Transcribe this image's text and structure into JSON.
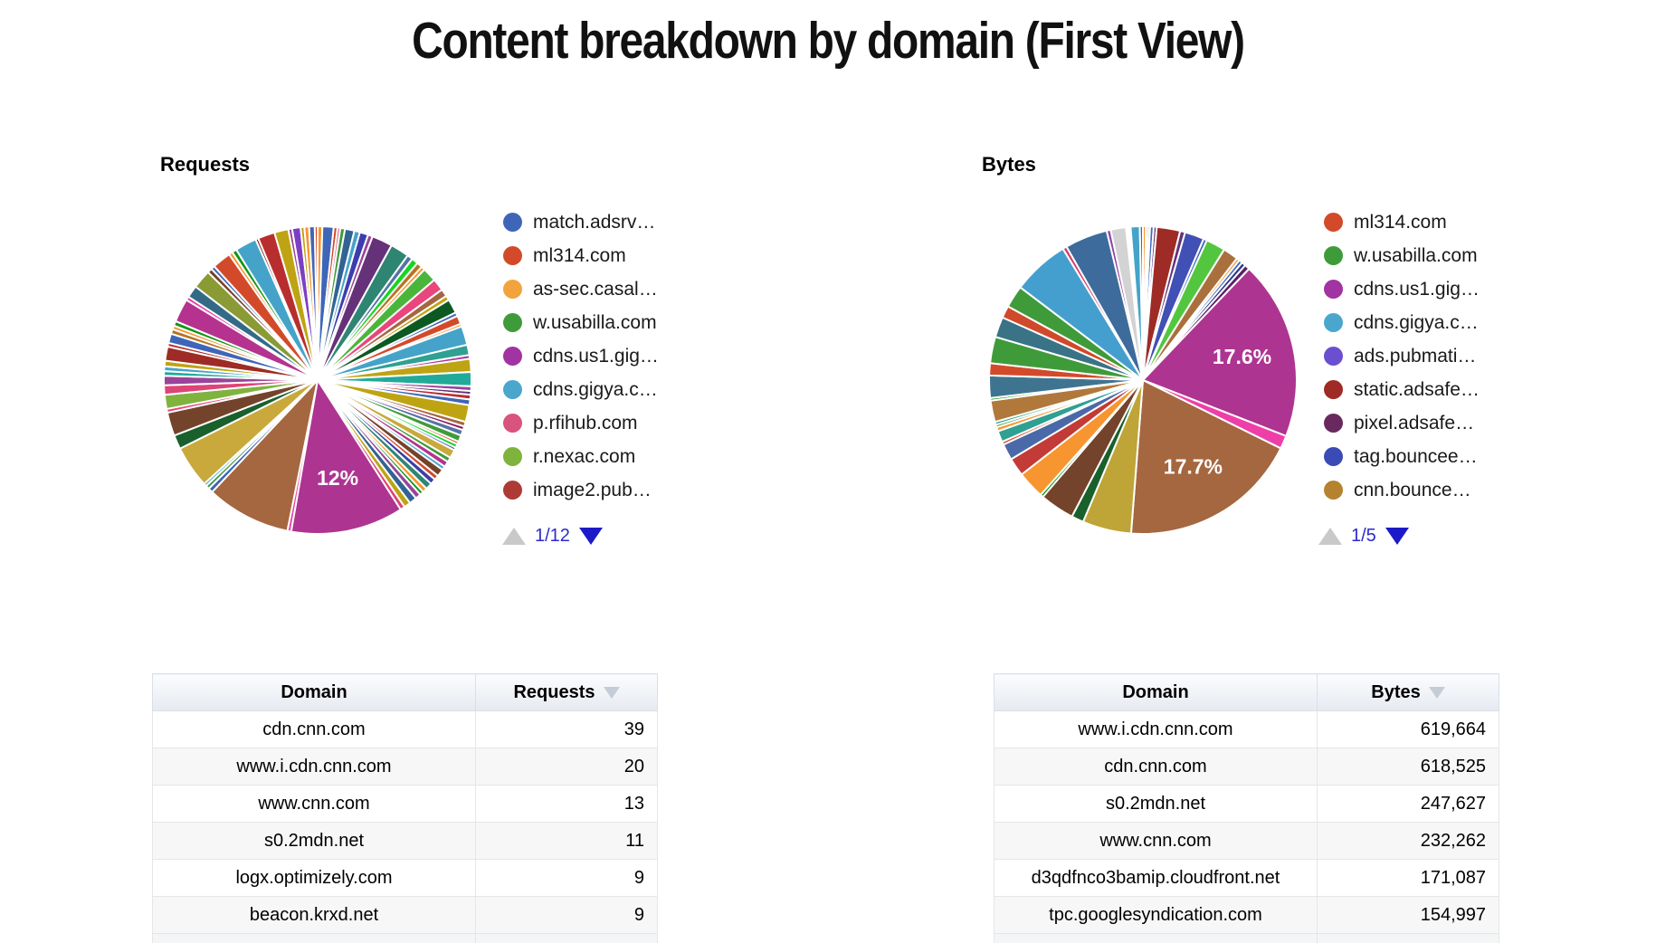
{
  "title": "Content breakdown by domain (First View)",
  "colors": {
    "link_blue": "#2b2bcd",
    "pager_active": "#1c1ac8",
    "pager_disabled": "#c9c9c9",
    "requests_big_slice": "#AD3591",
    "bytes_big_slice_1": "#AD3591",
    "bytes_big_slice_2": "#A5673F"
  },
  "chart_data": [
    {
      "type": "pie",
      "title": "Requests",
      "legend_position": "right",
      "pager": {
        "page": "1/12",
        "up_enabled": false,
        "down_enabled": true
      },
      "legend": [
        {
          "label": "match.adsrv…",
          "color": "#3E66B8"
        },
        {
          "label": "ml314.com",
          "color": "#D34A2B"
        },
        {
          "label": "as-sec.casal…",
          "color": "#F2A33C"
        },
        {
          "label": "w.usabilla.com",
          "color": "#3F9B3A"
        },
        {
          "label": "cdns.us1.gig…",
          "color": "#A233A2"
        },
        {
          "label": "cdns.gigya.c…",
          "color": "#4BA6CE"
        },
        {
          "label": "p.rfihub.com",
          "color": "#D8537E"
        },
        {
          "label": "r.nexac.com",
          "color": "#7FB33E"
        },
        {
          "label": "image2.pub…",
          "color": "#AE3A35"
        }
      ],
      "labeled_values": [
        {
          "label": "12%",
          "color": "#AD3591"
        }
      ],
      "slices": [
        [
          0.5,
          "#F79630"
        ],
        [
          1.2,
          "#3E66B8"
        ],
        [
          0.4,
          "#D34A2B"
        ],
        [
          0.3,
          "#E8467D"
        ],
        [
          0.5,
          "#3F9B3A"
        ],
        [
          1.0,
          "#316395"
        ],
        [
          0.6,
          "#45A3C9"
        ],
        [
          0.9,
          "#3B3EAC"
        ],
        [
          0.5,
          "#994499"
        ],
        [
          2.2,
          "#65327A"
        ],
        [
          2.0,
          "#2E8572"
        ],
        [
          0.6,
          "#5574A6"
        ],
        [
          0.7,
          "#16D620"
        ],
        [
          0.6,
          "#B77322"
        ],
        [
          0.4,
          "#F79630"
        ],
        [
          1.5,
          "#49B63B"
        ],
        [
          1.3,
          "#E8467D"
        ],
        [
          0.8,
          "#A5673F"
        ],
        [
          0.5,
          "#BEA413"
        ],
        [
          1.5,
          "#0C5922"
        ],
        [
          0.4,
          "#3E66B8"
        ],
        [
          0.9,
          "#D34A2B"
        ],
        [
          0.3,
          "#F79630"
        ],
        [
          2.0,
          "#45A3C9"
        ],
        [
          1.1,
          "#2FA092"
        ],
        [
          0.4,
          "#AD3591"
        ],
        [
          1.4,
          "#BEA413"
        ],
        [
          1.5,
          "#22AA99"
        ],
        [
          0.5,
          "#994499"
        ],
        [
          0.4,
          "#65327A"
        ],
        [
          0.5,
          "#B82E2E"
        ],
        [
          0.6,
          "#3E66B8"
        ],
        [
          1.8,
          "#BEA413"
        ],
        [
          0.5,
          "#A5673F"
        ],
        [
          0.4,
          "#8B1A62"
        ],
        [
          0.6,
          "#5574A6"
        ],
        [
          0.7,
          "#3F9B3A"
        ],
        [
          0.3,
          "#D34A2B"
        ],
        [
          0.4,
          "#16D620"
        ],
        [
          0.3,
          "#3E66B8"
        ],
        [
          0.9,
          "#C9A93B"
        ],
        [
          0.5,
          "#3F9B3A"
        ],
        [
          0.6,
          "#B5338F"
        ],
        [
          0.4,
          "#45A3C9"
        ],
        [
          0.8,
          "#74432B"
        ],
        [
          0.5,
          "#D34A2B"
        ],
        [
          0.6,
          "#3B3EAC"
        ],
        [
          0.7,
          "#2E8572"
        ],
        [
          0.5,
          "#F79630"
        ],
        [
          0.4,
          "#109618"
        ],
        [
          0.6,
          "#994499"
        ],
        [
          0.8,
          "#316395"
        ],
        [
          0.7,
          "#BEA413"
        ],
        [
          0.5,
          "#DD4477"
        ],
        [
          12.0,
          "#AD3591",
          "12%"
        ],
        [
          0.4,
          "#EE3FA8"
        ],
        [
          9.0,
          "#A5673F"
        ],
        [
          0.5,
          "#3E66B8"
        ],
        [
          0.4,
          "#3F9B3A"
        ],
        [
          0.3,
          "#45A3C9"
        ],
        [
          4.5,
          "#C9A93B"
        ],
        [
          1.5,
          "#19602C"
        ],
        [
          2.5,
          "#74432B"
        ],
        [
          0.4,
          "#E8467D"
        ],
        [
          1.5,
          "#7FB33E"
        ],
        [
          1.0,
          "#DD4477"
        ],
        [
          1.0,
          "#994499"
        ],
        [
          0.5,
          "#22AA99"
        ],
        [
          0.5,
          "#45A3C9"
        ],
        [
          0.6,
          "#BEA413"
        ],
        [
          1.5,
          "#9E2B25"
        ],
        [
          0.4,
          "#B82E2E"
        ],
        [
          1.0,
          "#3E66B8"
        ],
        [
          0.5,
          "#B77322"
        ],
        [
          0.4,
          "#F79630"
        ],
        [
          0.5,
          "#109618"
        ],
        [
          2.5,
          "#B5338F"
        ],
        [
          0.4,
          "#EE3FA8"
        ],
        [
          1.3,
          "#336B87"
        ],
        [
          2.0,
          "#8A9A35"
        ],
        [
          0.5,
          "#74432B"
        ],
        [
          0.4,
          "#3E66B8"
        ],
        [
          2.0,
          "#D34A2B"
        ],
        [
          0.4,
          "#F79630"
        ],
        [
          0.5,
          "#109618"
        ],
        [
          2.3,
          "#45A3C9"
        ],
        [
          0.3,
          "#8B0707"
        ],
        [
          1.8,
          "#B82E2E"
        ],
        [
          1.5,
          "#BEA413"
        ],
        [
          0.4,
          "#994499"
        ],
        [
          0.9,
          "#7B3FC4"
        ],
        [
          0.4,
          "#BEA413"
        ],
        [
          0.5,
          "#F79630"
        ],
        [
          0.6,
          "#3E66B8"
        ],
        [
          0.3,
          "#DC3912"
        ]
      ]
    },
    {
      "type": "pie",
      "title": "Bytes",
      "legend_position": "right",
      "pager": {
        "page": "1/5",
        "up_enabled": false,
        "down_enabled": true
      },
      "legend": [
        {
          "label": "ml314.com",
          "color": "#D34A2B"
        },
        {
          "label": "w.usabilla.com",
          "color": "#3F9B3A"
        },
        {
          "label": "cdns.us1.gig…",
          "color": "#A233A2"
        },
        {
          "label": "cdns.gigya.c…",
          "color": "#4BA6CE"
        },
        {
          "label": "ads.pubmati…",
          "color": "#6A4FD1"
        },
        {
          "label": "static.adsafe…",
          "color": "#9E2B25"
        },
        {
          "label": "pixel.adsafe…",
          "color": "#69295E"
        },
        {
          "label": "tag.bouncee…",
          "color": "#3A4BB5"
        },
        {
          "label": "cnn.bounce…",
          "color": "#B5822F"
        }
      ],
      "labeled_values": [
        {
          "label": "17.6%",
          "color": "#AD3591"
        },
        {
          "label": "17.7%",
          "color": "#A5673F"
        }
      ],
      "slices": [
        [
          0.3,
          "#F79630"
        ],
        [
          0.2,
          "#DC3912"
        ],
        [
          0.2,
          "#109618"
        ],
        [
          0.35,
          "#3E66B8"
        ],
        [
          0.3,
          "#65327A"
        ],
        [
          2.3,
          "#9E2B25"
        ],
        [
          0.5,
          "#65327A"
        ],
        [
          1.9,
          "#4150B5"
        ],
        [
          0.35,
          "#3E66B8"
        ],
        [
          1.9,
          "#52C63F"
        ],
        [
          1.5,
          "#A9703D"
        ],
        [
          0.3,
          "#F79630"
        ],
        [
          0.35,
          "#3E66B8"
        ],
        [
          0.4,
          "#2B3A8C"
        ],
        [
          0.5,
          "#5C1F66"
        ],
        [
          17.6,
          "#AD3591",
          "17.6%"
        ],
        [
          1.3,
          "#EE3FA8"
        ],
        [
          17.7,
          "#A5673F",
          "17.7%"
        ],
        [
          4.8,
          "#BFA437"
        ],
        [
          1.2,
          "#19602C"
        ],
        [
          3.4,
          "#74432B"
        ],
        [
          0.3,
          "#109618"
        ],
        [
          2.7,
          "#F79630"
        ],
        [
          1.8,
          "#C23B36"
        ],
        [
          1.6,
          "#4A69A8"
        ],
        [
          0.3,
          "#DC3912"
        ],
        [
          1.1,
          "#2FA092"
        ],
        [
          0.4,
          "#F79630"
        ],
        [
          0.25,
          "#109618"
        ],
        [
          0.3,
          "#2FA092"
        ],
        [
          2.1,
          "#B0793B"
        ],
        [
          0.25,
          "#109618"
        ],
        [
          2.2,
          "#3F7490"
        ],
        [
          1.2,
          "#D34A2B"
        ],
        [
          2.6,
          "#3F9B3A"
        ],
        [
          2.0,
          "#3A7286"
        ],
        [
          1.2,
          "#D0492B"
        ],
        [
          2.2,
          "#3F9B3A"
        ],
        [
          5.6,
          "#459FCE"
        ],
        [
          0.4,
          "#D23C68"
        ],
        [
          4.2,
          "#3D6B9B"
        ],
        [
          0.4,
          "#9346A8"
        ],
        [
          1.5,
          "#D3D3D3"
        ],
        [
          0.15,
          "#C0392B"
        ],
        [
          0.15,
          "#8E44AD"
        ],
        [
          0.15,
          "#27AE60"
        ],
        [
          0.9,
          "#45A3C9"
        ],
        [
          0.3,
          "#3E66B8"
        ]
      ]
    }
  ],
  "tables": [
    {
      "headers": [
        "Domain",
        "Requests"
      ],
      "sorted": {
        "column": "Requests",
        "direction": "desc"
      },
      "rows": [
        [
          "cdn.cnn.com",
          "39"
        ],
        [
          "www.i.cdn.cnn.com",
          "20"
        ],
        [
          "www.cnn.com",
          "13"
        ],
        [
          "s0.2mdn.net",
          "11"
        ],
        [
          "logx.optimizely.com",
          "9"
        ],
        [
          "beacon.krxd.net",
          "9"
        ]
      ]
    },
    {
      "headers": [
        "Domain",
        "Bytes"
      ],
      "sorted": {
        "column": "Bytes",
        "direction": "desc"
      },
      "rows": [
        [
          "www.i.cdn.cnn.com",
          "619,664"
        ],
        [
          "cdn.cnn.com",
          "618,525"
        ],
        [
          "s0.2mdn.net",
          "247,627"
        ],
        [
          "www.cnn.com",
          "232,262"
        ],
        [
          "d3qdfnco3bamip.cloudfront.net",
          "171,087"
        ],
        [
          "tpc.googlesyndication.com",
          "154,997"
        ]
      ]
    }
  ]
}
